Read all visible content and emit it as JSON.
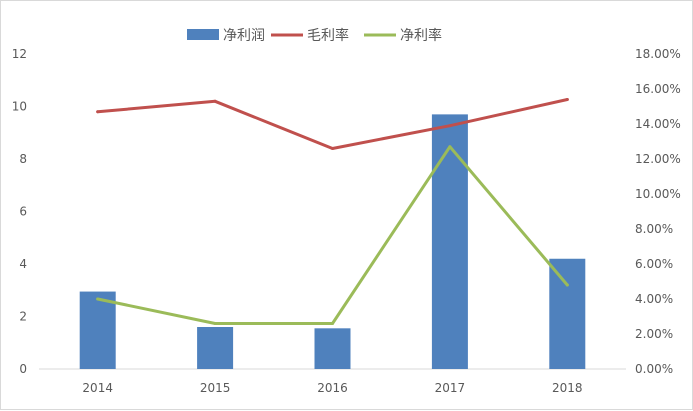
{
  "chart_data": {
    "type": "bar",
    "categories": [
      "2014",
      "2015",
      "2016",
      "2017",
      "2018"
    ],
    "series": [
      {
        "name": "净利润",
        "type": "bar",
        "axis": "left",
        "color": "#4f81bd",
        "values": [
          2.95,
          1.6,
          1.55,
          9.7,
          4.2
        ]
      },
      {
        "name": "毛利率",
        "type": "line",
        "axis": "right",
        "color": "#c0504d",
        "values": [
          0.147,
          0.153,
          0.126,
          0.139,
          0.154
        ]
      },
      {
        "name": "净利率",
        "type": "line",
        "axis": "right",
        "color": "#9bbb59",
        "values": [
          0.04,
          0.026,
          0.026,
          0.127,
          0.048
        ]
      }
    ],
    "left_axis": {
      "min": 0,
      "max": 12,
      "ticks": [
        "0",
        "2",
        "4",
        "6",
        "8",
        "10",
        "12"
      ]
    },
    "right_axis": {
      "min": 0,
      "max": 0.18,
      "ticks": [
        "0.00%",
        "2.00%",
        "4.00%",
        "6.00%",
        "8.00%",
        "10.00%",
        "12.00%",
        "14.00%",
        "16.00%",
        "18.00%"
      ]
    },
    "title": "",
    "xlabel": "",
    "ylabel": "",
    "grid": false,
    "legend_position": "top-center"
  }
}
